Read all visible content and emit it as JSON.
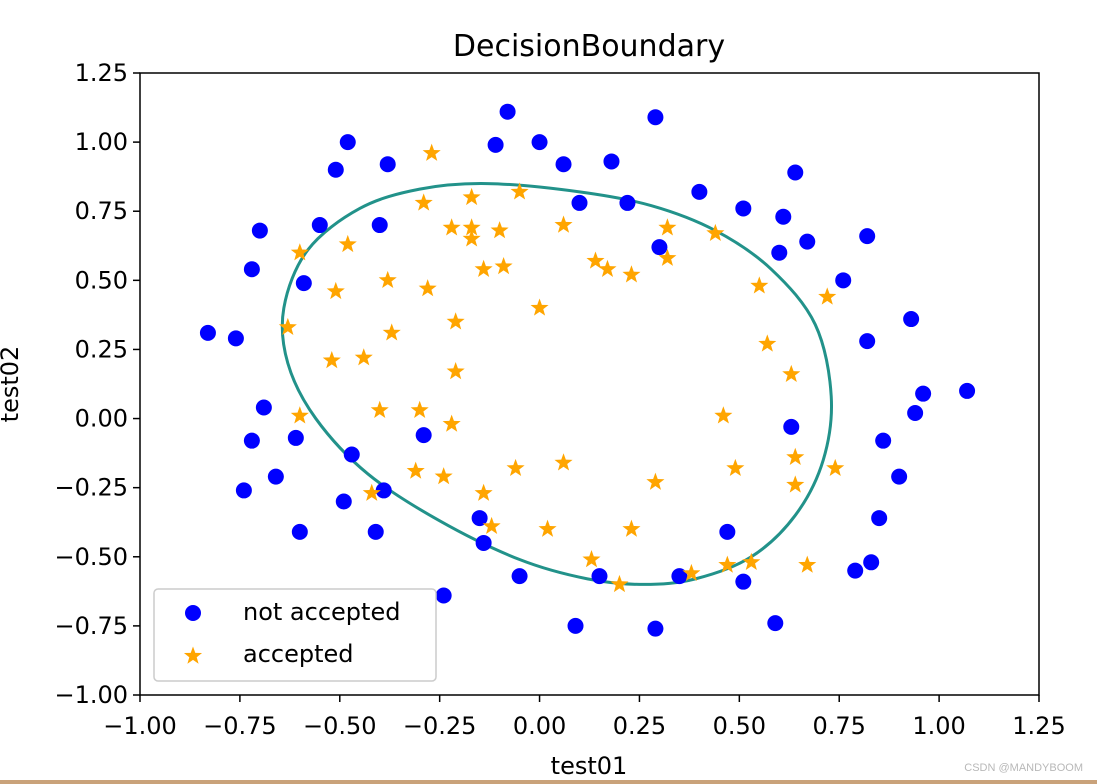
{
  "chart_data": {
    "type": "scatter",
    "title": "DecisionBoundary",
    "xlabel": "test01",
    "ylabel": "test02",
    "xlim": [
      -1.0,
      1.25
    ],
    "ylim": [
      -1.0,
      1.25
    ],
    "xticks": [
      -1.0,
      -0.75,
      -0.5,
      -0.25,
      0.0,
      0.25,
      0.5,
      0.75,
      1.0,
      1.25
    ],
    "yticks": [
      -1.0,
      -0.75,
      -0.5,
      -0.25,
      0.0,
      0.25,
      0.5,
      0.75,
      1.0,
      1.25
    ],
    "xtick_labels": [
      "−1.00",
      "−0.75",
      "−0.50",
      "−0.25",
      "0.00",
      "0.25",
      "0.50",
      "0.75",
      "1.00",
      "1.25"
    ],
    "ytick_labels": [
      "−1.00",
      "−0.75",
      "−0.50",
      "−0.25",
      "0.00",
      "0.25",
      "0.50",
      "0.75",
      "1.00",
      "1.25"
    ],
    "grid": false,
    "legend_position": "lower-left",
    "series": [
      {
        "name": "not accepted",
        "marker": "circle",
        "color": "#0000ff",
        "points": [
          [
            -0.83,
            0.31
          ],
          [
            -0.76,
            0.29
          ],
          [
            -0.72,
            0.54
          ],
          [
            -0.7,
            0.68
          ],
          [
            -0.55,
            0.7
          ],
          [
            -0.51,
            0.9
          ],
          [
            -0.48,
            1.0
          ],
          [
            -0.38,
            0.92
          ],
          [
            -0.4,
            0.7
          ],
          [
            -0.59,
            0.49
          ],
          [
            -0.11,
            0.99
          ],
          [
            -0.08,
            1.11
          ],
          [
            0.0,
            1.0
          ],
          [
            0.06,
            0.92
          ],
          [
            0.18,
            0.93
          ],
          [
            0.29,
            1.09
          ],
          [
            0.1,
            0.78
          ],
          [
            0.22,
            0.78
          ],
          [
            0.3,
            0.62
          ],
          [
            0.4,
            0.82
          ],
          [
            0.51,
            0.76
          ],
          [
            0.61,
            0.73
          ],
          [
            0.64,
            0.89
          ],
          [
            0.6,
            0.6
          ],
          [
            0.67,
            0.64
          ],
          [
            0.76,
            0.5
          ],
          [
            0.82,
            0.66
          ],
          [
            0.82,
            0.28
          ],
          [
            0.93,
            0.36
          ],
          [
            0.96,
            0.09
          ],
          [
            1.07,
            0.1
          ],
          [
            0.94,
            0.02
          ],
          [
            0.86,
            -0.08
          ],
          [
            0.9,
            -0.21
          ],
          [
            0.85,
            -0.36
          ],
          [
            0.83,
            -0.52
          ],
          [
            0.79,
            -0.55
          ],
          [
            0.63,
            -0.03
          ],
          [
            0.59,
            -0.74
          ],
          [
            0.51,
            -0.59
          ],
          [
            0.47,
            -0.41
          ],
          [
            0.35,
            -0.57
          ],
          [
            0.29,
            -0.76
          ],
          [
            0.15,
            -0.57
          ],
          [
            0.09,
            -0.75
          ],
          [
            -0.05,
            -0.57
          ],
          [
            -0.14,
            -0.45
          ],
          [
            -0.15,
            -0.36
          ],
          [
            -0.24,
            -0.64
          ],
          [
            -0.29,
            -0.06
          ],
          [
            -0.39,
            -0.26
          ],
          [
            -0.41,
            -0.41
          ],
          [
            -0.49,
            -0.3
          ],
          [
            -0.47,
            -0.13
          ],
          [
            -0.61,
            -0.07
          ],
          [
            -0.6,
            -0.41
          ],
          [
            -0.66,
            -0.21
          ],
          [
            -0.74,
            -0.26
          ],
          [
            -0.72,
            -0.08
          ],
          [
            -0.69,
            0.04
          ]
        ]
      },
      {
        "name": "accepted",
        "marker": "star",
        "color": "#ffa500",
        "points": [
          [
            -0.27,
            0.96
          ],
          [
            -0.29,
            0.78
          ],
          [
            -0.17,
            0.8
          ],
          [
            -0.05,
            0.82
          ],
          [
            -0.22,
            0.69
          ],
          [
            -0.17,
            0.69
          ],
          [
            -0.17,
            0.65
          ],
          [
            -0.1,
            0.68
          ],
          [
            -0.14,
            0.54
          ],
          [
            -0.09,
            0.55
          ],
          [
            -0.48,
            0.63
          ],
          [
            -0.6,
            0.6
          ],
          [
            -0.51,
            0.46
          ],
          [
            -0.38,
            0.5
          ],
          [
            -0.28,
            0.47
          ],
          [
            -0.21,
            0.35
          ],
          [
            -0.37,
            0.31
          ],
          [
            -0.63,
            0.33
          ],
          [
            -0.52,
            0.21
          ],
          [
            -0.44,
            0.22
          ],
          [
            -0.21,
            0.17
          ],
          [
            -0.4,
            0.03
          ],
          [
            -0.3,
            0.03
          ],
          [
            -0.22,
            -0.02
          ],
          [
            -0.6,
            0.01
          ],
          [
            -0.31,
            -0.19
          ],
          [
            -0.24,
            -0.21
          ],
          [
            -0.06,
            -0.18
          ],
          [
            -0.14,
            -0.27
          ],
          [
            -0.42,
            -0.27
          ],
          [
            -0.12,
            -0.39
          ],
          [
            0.02,
            -0.4
          ],
          [
            0.06,
            -0.16
          ],
          [
            0.13,
            -0.51
          ],
          [
            0.2,
            -0.6
          ],
          [
            0.23,
            -0.4
          ],
          [
            0.29,
            -0.23
          ],
          [
            0.0,
            0.4
          ],
          [
            0.06,
            0.7
          ],
          [
            0.14,
            0.57
          ],
          [
            0.17,
            0.54
          ],
          [
            0.23,
            0.52
          ],
          [
            0.32,
            0.58
          ],
          [
            0.32,
            0.69
          ],
          [
            0.44,
            0.67
          ],
          [
            0.55,
            0.48
          ],
          [
            0.57,
            0.27
          ],
          [
            0.63,
            0.16
          ],
          [
            0.72,
            0.44
          ],
          [
            0.46,
            0.01
          ],
          [
            0.49,
            -0.18
          ],
          [
            0.64,
            -0.14
          ],
          [
            0.64,
            -0.24
          ],
          [
            0.74,
            -0.18
          ],
          [
            0.38,
            -0.56
          ],
          [
            0.47,
            -0.53
          ],
          [
            0.53,
            -0.52
          ],
          [
            0.67,
            -0.53
          ]
        ]
      }
    ],
    "decision_boundary": {
      "shape": "closed-curve",
      "color": "#22928a",
      "points": [
        [
          -0.13,
          0.85
        ],
        [
          0.1,
          0.82
        ],
        [
          0.28,
          0.77
        ],
        [
          0.44,
          0.68
        ],
        [
          0.58,
          0.54
        ],
        [
          0.69,
          0.34
        ],
        [
          0.73,
          0.08
        ],
        [
          0.71,
          -0.15
        ],
        [
          0.64,
          -0.35
        ],
        [
          0.53,
          -0.5
        ],
        [
          0.39,
          -0.58
        ],
        [
          0.26,
          -0.6
        ],
        [
          0.12,
          -0.58
        ],
        [
          -0.05,
          -0.51
        ],
        [
          -0.25,
          -0.37
        ],
        [
          -0.43,
          -0.2
        ],
        [
          -0.56,
          0.0
        ],
        [
          -0.63,
          0.2
        ],
        [
          -0.64,
          0.4
        ],
        [
          -0.58,
          0.61
        ],
        [
          -0.45,
          0.76
        ],
        [
          -0.3,
          0.83
        ]
      ]
    }
  },
  "watermark": "CSDN @MANDYBOOM"
}
